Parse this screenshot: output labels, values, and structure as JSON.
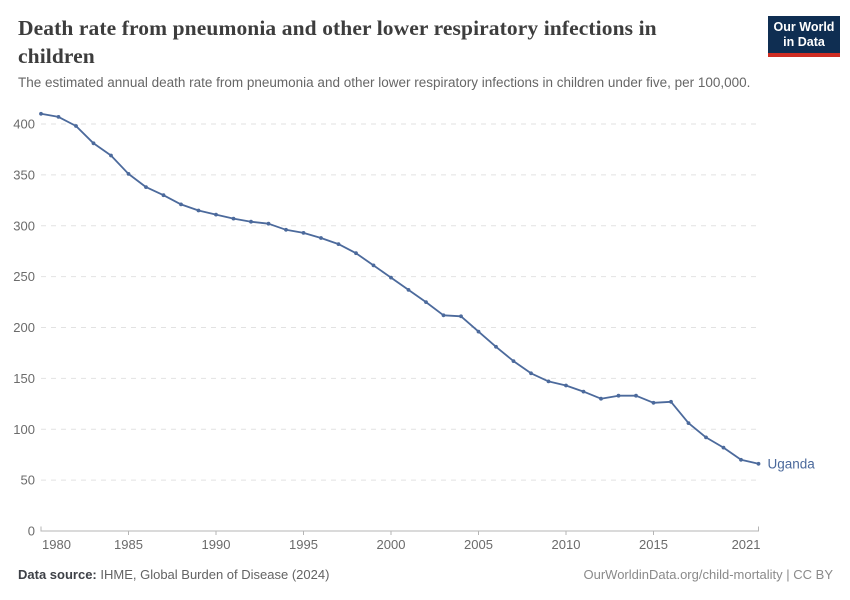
{
  "header": {
    "title_line1": "Death rate from pneumonia and other lower respiratory infections in",
    "title_line2": "children",
    "subtitle": "The estimated annual death rate from pneumonia and other lower respiratory infections in children under five, per 100,000."
  },
  "logo": {
    "line1": "Our World",
    "line2": "in Data"
  },
  "footer": {
    "source_label": "Data source:",
    "source_text": " IHME, Global Burden of Disease (2024)",
    "link": "OurWorldinData.org/child-mortality | CC BY"
  },
  "colors": {
    "accent": "#4C6A9C",
    "logo_bg": "#0f2e52",
    "logo_bar": "#cf2d23",
    "grid": "#e2e2e2",
    "axis": "#b5b5b5",
    "tick_text": "#6b6b6b",
    "title_text": "#3d3d3d"
  },
  "chart_data": {
    "type": "line",
    "title": "Death rate from pneumonia and other lower respiratory infections in children",
    "subtitle": "The estimated annual death rate from pneumonia and other lower respiratory infections in children under five, per 100,000.",
    "xlabel": "",
    "ylabel": "",
    "xlim": [
      1980,
      2021
    ],
    "ylim": [
      0,
      420
    ],
    "xticks": [
      1980,
      1985,
      1990,
      1995,
      2000,
      2005,
      2010,
      2015,
      2021
    ],
    "yticks": [
      0,
      50,
      100,
      150,
      200,
      250,
      300,
      350,
      400
    ],
    "grid": "horizontal-dashed",
    "legend_position": "end-of-line-label",
    "entity_label": "Uganda",
    "series": [
      {
        "name": "Uganda",
        "x": [
          1980,
          1981,
          1982,
          1983,
          1984,
          1985,
          1986,
          1987,
          1988,
          1989,
          1990,
          1991,
          1992,
          1993,
          1994,
          1995,
          1996,
          1997,
          1998,
          1999,
          2000,
          2001,
          2002,
          2003,
          2004,
          2005,
          2006,
          2007,
          2008,
          2009,
          2010,
          2011,
          2012,
          2013,
          2014,
          2015,
          2016,
          2017,
          2018,
          2019,
          2020,
          2021
        ],
        "values": [
          410,
          407,
          398,
          381,
          369,
          351,
          338,
          330,
          321,
          315,
          311,
          307,
          304,
          302,
          296,
          293,
          288,
          282,
          273,
          261,
          249,
          237,
          225,
          212,
          211,
          196,
          181,
          167,
          155,
          147,
          143,
          137,
          130,
          133,
          133,
          126,
          127,
          106,
          92,
          82,
          70,
          66
        ]
      }
    ]
  }
}
